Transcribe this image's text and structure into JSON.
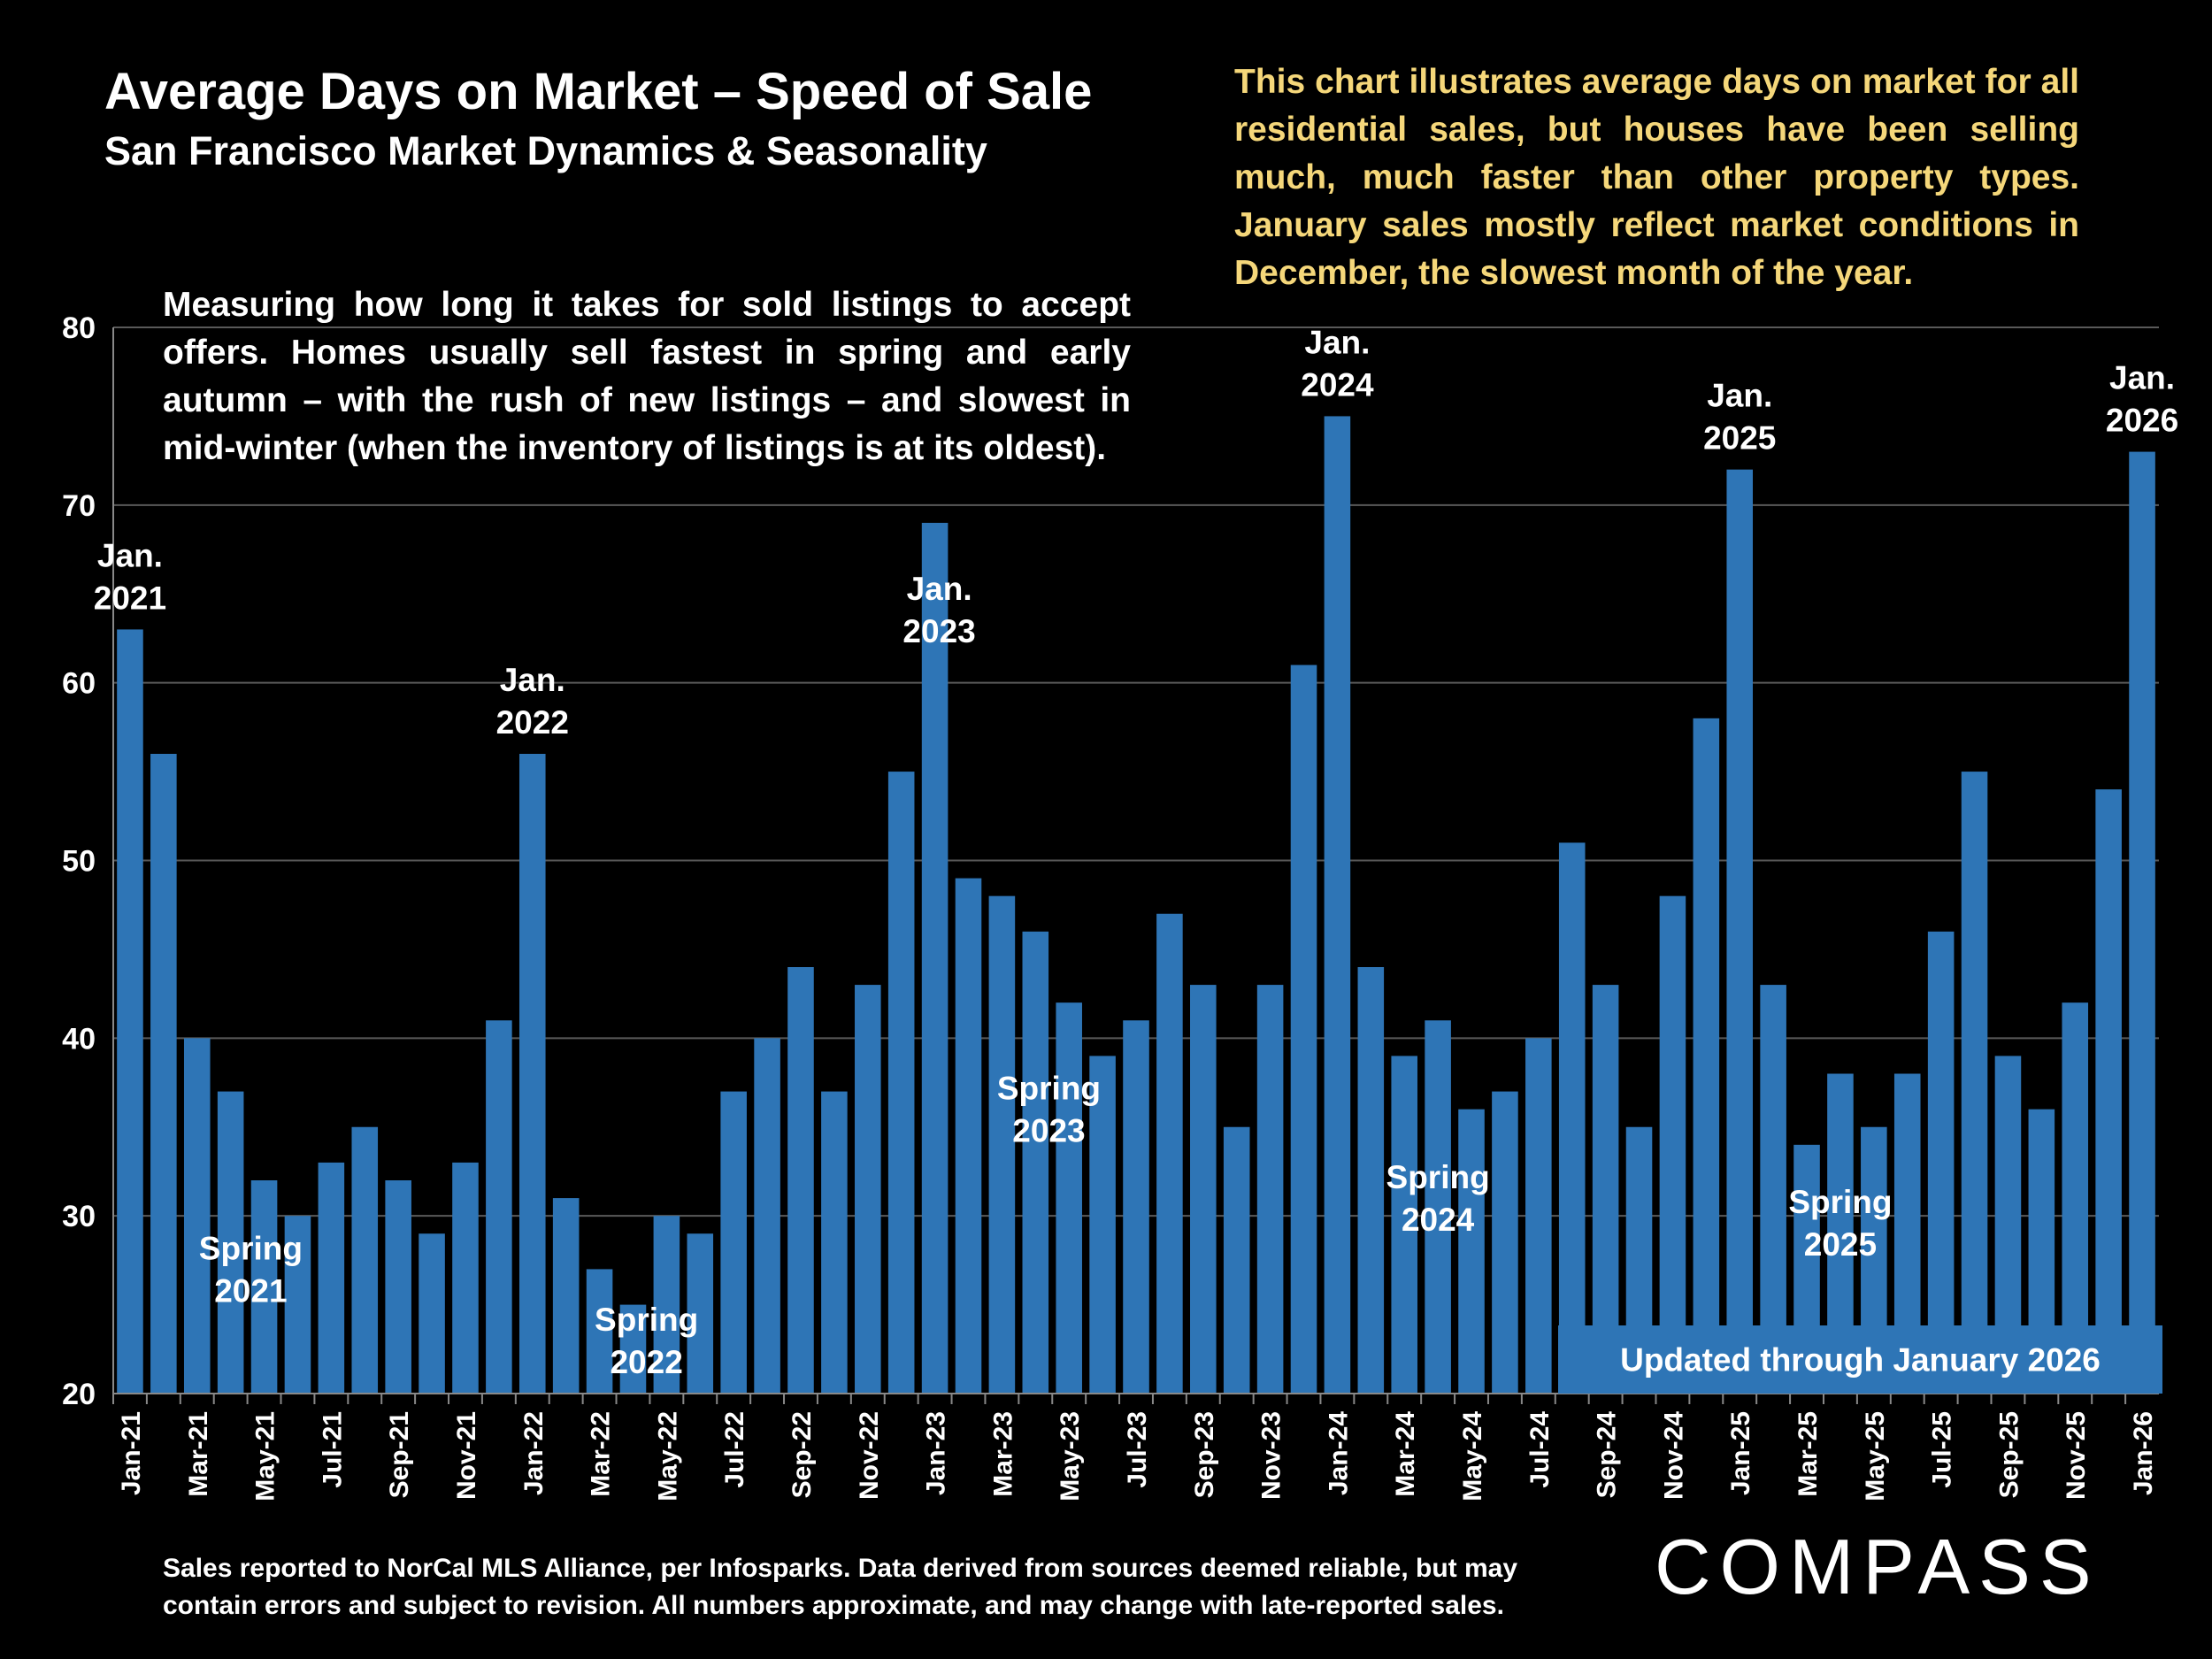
{
  "header": {
    "title": "Average Days on Market – Speed of Sale",
    "subtitle": "San Francisco Market Dynamics & Seasonality"
  },
  "notes": {
    "right": "This chart illustrates average days on market for all residential sales, but houses have been selling much, much faster than other property types. January sales mostly reflect market conditions in December, the slowest month of the year.",
    "left": "Measuring how long it takes for sold listings to accept offers. Homes usually sell fastest in spring and early autumn – with the rush of new listings – and slowest in mid-winter (when the inventory of listings is at its oldest)."
  },
  "footer": "Sales reported to NorCal MLS Alliance, per Infosparks. Data derived from sources deemed reliable, but may contain errors and subject to revision. All numbers approximate, and may change with late-reported sales.",
  "logo": "COMPASS",
  "colors": {
    "bar": "#2E75B6",
    "background": "#000000",
    "note_right": "#F5D77A",
    "grid": "#595959"
  },
  "chart_data": {
    "type": "bar",
    "title": "Average Days on Market – Speed of Sale",
    "xlabel": "",
    "ylabel": "",
    "ylim": [
      20,
      80
    ],
    "yticks": [
      20,
      30,
      40,
      50,
      60,
      70,
      80
    ],
    "grid": true,
    "categories": [
      "Jan-21",
      "Feb-21",
      "Mar-21",
      "Apr-21",
      "May-21",
      "Jun-21",
      "Jul-21",
      "Aug-21",
      "Sep-21",
      "Oct-21",
      "Nov-21",
      "Dec-21",
      "Jan-22",
      "Feb-22",
      "Mar-22",
      "Apr-22",
      "May-22",
      "Jun-22",
      "Jul-22",
      "Aug-22",
      "Sep-22",
      "Oct-22",
      "Nov-22",
      "Dec-22",
      "Jan-23",
      "Feb-23",
      "Mar-23",
      "Apr-23",
      "May-23",
      "Jun-23",
      "Jul-23",
      "Aug-23",
      "Sep-23",
      "Oct-23",
      "Nov-23",
      "Dec-23",
      "Jan-24",
      "Feb-24",
      "Mar-24",
      "Apr-24",
      "May-24",
      "Jun-24",
      "Jul-24",
      "Aug-24",
      "Sep-24",
      "Oct-24",
      "Nov-24",
      "Dec-24",
      "Jan-25",
      "Feb-25",
      "Mar-25",
      "Apr-25",
      "May-25",
      "Jun-25",
      "Jul-25",
      "Aug-25",
      "Sep-25",
      "Oct-25",
      "Nov-25",
      "Dec-25",
      "Jan-26"
    ],
    "values": [
      63,
      56,
      40,
      37,
      32,
      30,
      33,
      35,
      32,
      29,
      33,
      41,
      56,
      31,
      27,
      25,
      30,
      29,
      37,
      40,
      44,
      37,
      43,
      55,
      69,
      49,
      48,
      46,
      42,
      39,
      41,
      47,
      43,
      35,
      43,
      61,
      75,
      44,
      39,
      41,
      36,
      37,
      40,
      51,
      43,
      35,
      48,
      58,
      72,
      43,
      34,
      38,
      35,
      38,
      46,
      55,
      39,
      36,
      42,
      54,
      73
    ],
    "annotations": [
      {
        "text": [
          "Jan.",
          "2021"
        ],
        "category": "Jan-21"
      },
      {
        "text": [
          "Spring",
          "2021"
        ],
        "category": "Apr-21"
      },
      {
        "text": [
          "Jan.",
          "2022"
        ],
        "category": "Jan-22"
      },
      {
        "text": [
          "Spring",
          "2022"
        ],
        "category": "Apr-22"
      },
      {
        "text": [
          "Jan.",
          "2023"
        ],
        "category": "Jan-23"
      },
      {
        "text": [
          "Spring",
          "2023"
        ],
        "category": "Apr-23"
      },
      {
        "text": [
          "Jan.",
          "2024"
        ],
        "category": "Jan-24"
      },
      {
        "text": [
          "Spring",
          "2024"
        ],
        "category": "Apr-24"
      },
      {
        "text": [
          "Jan.",
          "2025"
        ],
        "category": "Jan-25"
      },
      {
        "text": [
          "Spring",
          "2025"
        ],
        "category": "Apr-25"
      },
      {
        "text": [
          "Jan.",
          "2026"
        ],
        "category": "Jan-26"
      }
    ],
    "badge": "Updated through January 2026"
  }
}
